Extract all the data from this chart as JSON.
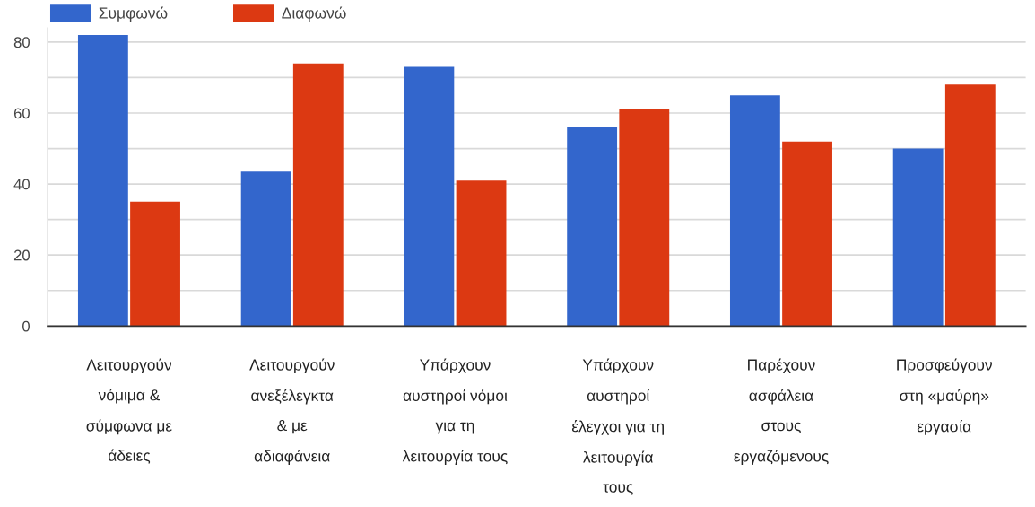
{
  "chart_data": {
    "type": "bar",
    "categories": [
      "Λειτουργούν\nνόμιμα &\nσύμφωνα με\nάδειες",
      "Λειτουργούν\nανεξέλεγκτα\n& με\nαδιαφάνεια",
      "Υπάρχουν\nαυστηροί νόμοι\nγια τη\nλειτουργία τους",
      "Υπάρχουν\nαυστηροί\nέλεγχοι για τη\nλειτουργία\nτους",
      "Παρέχουν\nασφάλεια\nστους\nεργαζόμενους",
      "Προσφεύγουν\nστη «μαύρη»\nεργασία"
    ],
    "series": [
      {
        "name": "Συμφωνώ",
        "color": "#3366cc",
        "values": [
          82,
          43.5,
          73,
          56,
          65,
          50
        ]
      },
      {
        "name": "Διαφωνώ",
        "color": "#dc3912",
        "values": [
          35,
          74,
          41,
          61,
          52,
          68
        ]
      }
    ],
    "ylim": [
      0,
      84
    ],
    "yticks": [
      0,
      {
        "value": 10,
        "label": null
      },
      20,
      {
        "value": 30,
        "label": null
      },
      40,
      {
        "value": 50,
        "label": null
      },
      60,
      {
        "value": 70,
        "label": null
      },
      80
    ],
    "grid": "y",
    "legend": "top left"
  }
}
